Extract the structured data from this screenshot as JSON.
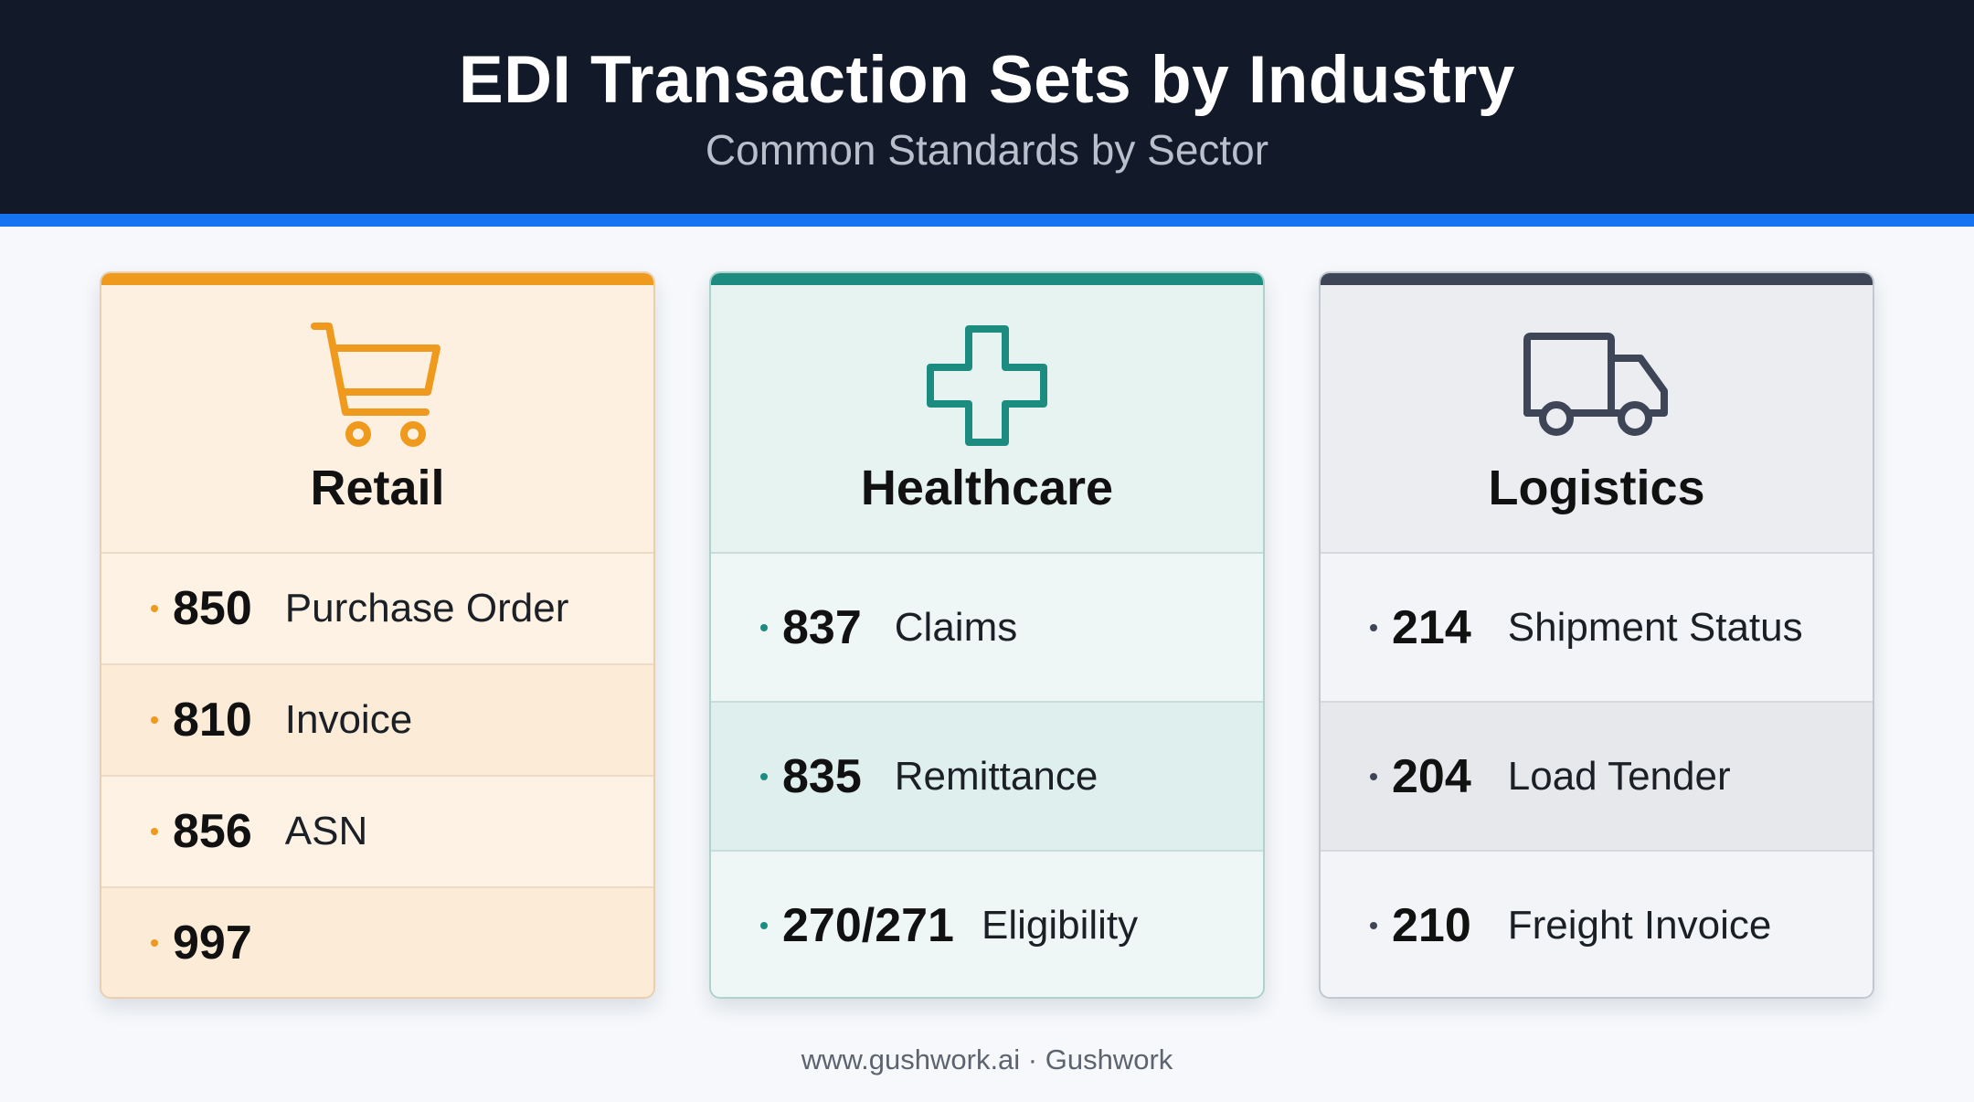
{
  "header": {
    "title": "EDI Transaction Sets by Industry",
    "subtitle": "Common Standards by Sector"
  },
  "colors": {
    "header_bg": "#121a2a",
    "accent_rule": "#1674f0",
    "retail": "#ef9a1c",
    "healthcare": "#1d8c80",
    "logistics": "#3d4556"
  },
  "cards": [
    {
      "title": "Retail",
      "icon": "shopping-cart-icon",
      "items": [
        {
          "code": "850",
          "label": "Purchase Order"
        },
        {
          "code": "810",
          "label": "Invoice"
        },
        {
          "code": "856",
          "label": "ASN"
        },
        {
          "code": "997",
          "label": ""
        }
      ]
    },
    {
      "title": "Healthcare",
      "icon": "medical-cross-icon",
      "items": [
        {
          "code": "837",
          "label": "Claims"
        },
        {
          "code": "835",
          "label": "Remittance"
        },
        {
          "code": "270/271",
          "label": "Eligibility"
        }
      ]
    },
    {
      "title": "Logistics",
      "icon": "truck-icon",
      "items": [
        {
          "code": "214",
          "label": "Shipment Status"
        },
        {
          "code": "204",
          "label": "Load Tender"
        },
        {
          "code": "210",
          "label": "Freight Invoice"
        }
      ]
    }
  ],
  "footer": {
    "text": "www.gushwork.ai · Gushwork"
  }
}
